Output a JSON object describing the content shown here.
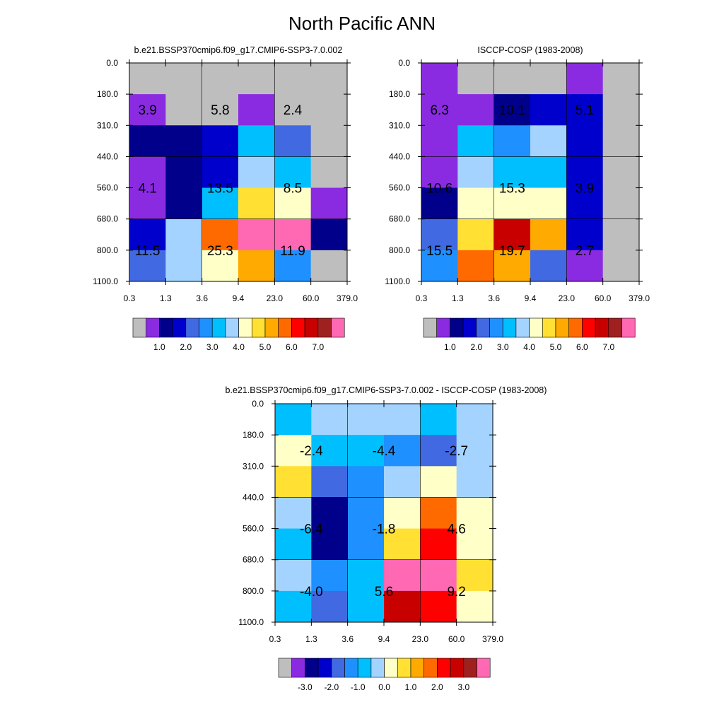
{
  "title": "North Pacific ANN",
  "color_palette": [
    "#bebebe",
    "#8a2be2",
    "#00008b",
    "#0000cd",
    "#4169e1",
    "#1e90ff",
    "#00bfff",
    "#a4d3ff",
    "#ffffc8",
    "#ffe033",
    "#ffaa00",
    "#ff6a00",
    "#ff0000",
    "#c80000",
    "#a02020",
    "#ff69b4"
  ],
  "chart_data": [
    {
      "id": "model",
      "type": "heatmap",
      "title": "b.e21.BSSP370cmip6.f09_g17.CMIP6-SSP3-7.0.002",
      "x_tick_labels": [
        "0.3",
        "1.3",
        "3.6",
        "9.4",
        "23.0",
        "60.0",
        "379.0"
      ],
      "y_tick_labels": [
        "0.0",
        "180.0",
        "310.0",
        "440.0",
        "560.0",
        "680.0",
        "800.0",
        "1100.0"
      ],
      "color_index_grid": [
        [
          0,
          0,
          0,
          0,
          0,
          0
        ],
        [
          1,
          0,
          0,
          1,
          0,
          0
        ],
        [
          2,
          2,
          3,
          6,
          4,
          0
        ],
        [
          1,
          2,
          3,
          7,
          6,
          0
        ],
        [
          1,
          2,
          6,
          9,
          8,
          1
        ],
        [
          3,
          7,
          11,
          15,
          15,
          2
        ],
        [
          4,
          7,
          8,
          10,
          5,
          0
        ]
      ],
      "cell_labels": [
        {
          "text": "3.9",
          "col": 0.5,
          "row": 1.5
        },
        {
          "text": "5.8",
          "col": 2.5,
          "row": 1.5
        },
        {
          "text": "2.4",
          "col": 4.5,
          "row": 1.5
        },
        {
          "text": "4.1",
          "col": 0.5,
          "row": 4
        },
        {
          "text": "13.5",
          "col": 2.5,
          "row": 4
        },
        {
          "text": "8.5",
          "col": 4.5,
          "row": 4
        },
        {
          "text": "11.5",
          "col": 0.5,
          "row": 6
        },
        {
          "text": "25.3",
          "col": 2.5,
          "row": 6
        },
        {
          "text": "11.9",
          "col": 4.5,
          "row": 6
        }
      ],
      "colorbar": {
        "labels": [
          "1.0",
          "2.0",
          "3.0",
          "4.0",
          "5.0",
          "6.0",
          "7.0"
        ],
        "first_label_boundary": 2
      }
    },
    {
      "id": "obs",
      "type": "heatmap",
      "title": "ISCCP-COSP (1983-2008)",
      "x_tick_labels": [
        "0.3",
        "1.3",
        "3.6",
        "9.4",
        "23.0",
        "60.0",
        "379.0"
      ],
      "y_tick_labels": [
        "0.0",
        "180.0",
        "310.0",
        "440.0",
        "560.0",
        "680.0",
        "800.0",
        "1100.0"
      ],
      "color_index_grid": [
        [
          1,
          0,
          0,
          0,
          1,
          0
        ],
        [
          1,
          1,
          2,
          3,
          3,
          0
        ],
        [
          1,
          6,
          5,
          7,
          3,
          0
        ],
        [
          1,
          7,
          6,
          6,
          3,
          0
        ],
        [
          2,
          8,
          8,
          8,
          3,
          0
        ],
        [
          4,
          9,
          13,
          10,
          3,
          0
        ],
        [
          5,
          11,
          10,
          4,
          1,
          0
        ]
      ],
      "cell_labels": [
        {
          "text": "6.3",
          "col": 0.5,
          "row": 1.5
        },
        {
          "text": "10.1",
          "col": 2.5,
          "row": 1.5
        },
        {
          "text": "5.1",
          "col": 4.5,
          "row": 1.5
        },
        {
          "text": "10.6",
          "col": 0.5,
          "row": 4
        },
        {
          "text": "15.3",
          "col": 2.5,
          "row": 4
        },
        {
          "text": "3.9",
          "col": 4.5,
          "row": 4
        },
        {
          "text": "15.5",
          "col": 0.5,
          "row": 6
        },
        {
          "text": "19.7",
          "col": 2.5,
          "row": 6
        },
        {
          "text": "2.7",
          "col": 4.5,
          "row": 6
        }
      ],
      "colorbar": {
        "labels": [
          "1.0",
          "2.0",
          "3.0",
          "4.0",
          "5.0",
          "6.0",
          "7.0"
        ],
        "first_label_boundary": 2
      }
    },
    {
      "id": "diff",
      "type": "heatmap",
      "title": "b.e21.BSSP370cmip6.f09_g17.CMIP6-SSP3-7.0.002 - ISCCP-COSP (1983-2008)",
      "x_tick_labels": [
        "0.3",
        "1.3",
        "3.6",
        "9.4",
        "23.0",
        "60.0",
        "379.0"
      ],
      "y_tick_labels": [
        "0.0",
        "180.0",
        "310.0",
        "440.0",
        "560.0",
        "680.0",
        "800.0",
        "1100.0"
      ],
      "color_index_grid": [
        [
          6,
          7,
          7,
          7,
          6,
          7
        ],
        [
          8,
          6,
          6,
          5,
          4,
          7
        ],
        [
          9,
          4,
          5,
          7,
          8,
          7
        ],
        [
          7,
          2,
          5,
          8,
          11,
          8
        ],
        [
          6,
          2,
          5,
          9,
          12,
          8
        ],
        [
          7,
          5,
          6,
          15,
          15,
          9
        ],
        [
          6,
          4,
          6,
          13,
          12,
          8
        ]
      ],
      "cell_labels": [
        {
          "text": "-2.4",
          "col": 1,
          "row": 1.5
        },
        {
          "text": "-4.4",
          "col": 3,
          "row": 1.5
        },
        {
          "text": "-2.7",
          "col": 5,
          "row": 1.5
        },
        {
          "text": "-6.4",
          "col": 1,
          "row": 4
        },
        {
          "text": "-1.8",
          "col": 3,
          "row": 4
        },
        {
          "text": "4.6",
          "col": 5,
          "row": 4
        },
        {
          "text": "-4.0",
          "col": 1,
          "row": 6
        },
        {
          "text": "5.6",
          "col": 3,
          "row": 6
        },
        {
          "text": "9.2",
          "col": 5,
          "row": 6
        }
      ],
      "colorbar": {
        "labels": [
          "-3.0",
          "-2.0",
          "-1.0",
          "0.0",
          "1.0",
          "2.0",
          "3.0"
        ],
        "first_label_boundary": 2
      }
    }
  ]
}
